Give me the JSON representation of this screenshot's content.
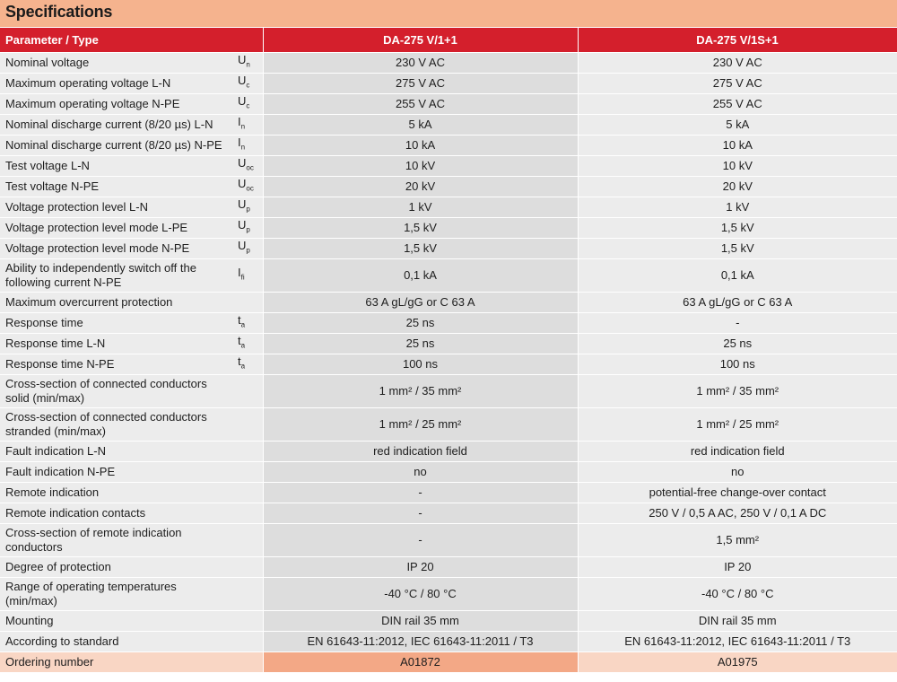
{
  "title": "Specifications",
  "columns": {
    "param": "Parameter / Type",
    "v1": "DA-275 V/1+1",
    "v2": "DA-275 V/1S+1"
  },
  "rows": [
    {
      "name": "Nominal voltage",
      "sym": "U",
      "sub": "n",
      "v1": "230 V AC",
      "v2": "230 V AC"
    },
    {
      "name": "Maximum operating voltage L-N",
      "sym": "U",
      "sub": "c",
      "v1": "275 V AC",
      "v2": "275 V AC"
    },
    {
      "name": "Maximum operating voltage N-PE",
      "sym": "U",
      "sub": "c",
      "v1": "255 V AC",
      "v2": "255 V AC"
    },
    {
      "name": "Nominal discharge current (8/20 µs) L-N",
      "sym": "I",
      "sub": "n",
      "v1": "5 kA",
      "v2": "5 kA"
    },
    {
      "name": "Nominal discharge current (8/20 µs) N-PE",
      "sym": "I",
      "sub": "n",
      "v1": "10 kA",
      "v2": "10 kA"
    },
    {
      "name": "Test voltage L-N",
      "sym": "U",
      "sub": "oc",
      "v1": "10 kV",
      "v2": "10 kV"
    },
    {
      "name": "Test voltage N-PE",
      "sym": "U",
      "sub": "oc",
      "v1": "20 kV",
      "v2": "20 kV"
    },
    {
      "name": "Voltage protection level L-N",
      "sym": "U",
      "sub": "p",
      "v1": "1 kV",
      "v2": "1 kV"
    },
    {
      "name": "Voltage protection level mode L-PE",
      "sym": "U",
      "sub": "p",
      "v1": "1,5 kV",
      "v2": "1,5 kV"
    },
    {
      "name": "Voltage protection level mode N-PE",
      "sym": "U",
      "sub": "p",
      "v1": "1,5 kV",
      "v2": "1,5 kV"
    },
    {
      "name": "Ability to independently switch off the following current N-PE",
      "sym": "I",
      "sub": "fi",
      "v1": "0,1 kA",
      "v2": "0,1 kA"
    },
    {
      "name": "Maximum overcurrent protection",
      "sym": "",
      "sub": "",
      "v1": "63 A gL/gG or C 63 A",
      "v2": "63 A gL/gG or C 63 A"
    },
    {
      "name": "Response time",
      "sym": "t",
      "sub": "a",
      "v1": "25 ns",
      "v2": "-"
    },
    {
      "name": "Response time L-N",
      "sym": "t",
      "sub": "a",
      "v1": "25 ns",
      "v2": "25 ns"
    },
    {
      "name": "Response time N-PE",
      "sym": "t",
      "sub": "a",
      "v1": "100 ns",
      "v2": "100 ns"
    },
    {
      "name": "Cross-section of connected conductors solid (min/max)",
      "sym": "",
      "sub": "",
      "v1": "1 mm² / 35 mm²",
      "v2": "1 mm² / 35 mm²"
    },
    {
      "name": "Cross-section of connected conductors stranded (min/max)",
      "sym": "",
      "sub": "",
      "v1": "1 mm² / 25 mm²",
      "v2": "1 mm² / 25 mm²"
    },
    {
      "name": "Fault indication L-N",
      "sym": "",
      "sub": "",
      "v1": "red indication field",
      "v2": "red indication field"
    },
    {
      "name": "Fault indication N-PE",
      "sym": "",
      "sub": "",
      "v1": "no",
      "v2": "no"
    },
    {
      "name": "Remote indication",
      "sym": "",
      "sub": "",
      "v1": "-",
      "v2": "potential-free change-over contact"
    },
    {
      "name": "Remote indication contacts",
      "sym": "",
      "sub": "",
      "v1": "-",
      "v2": "250 V / 0,5 A AC, 250 V / 0,1 A DC"
    },
    {
      "name": "Cross-section of remote indication conductors",
      "sym": "",
      "sub": "",
      "v1": "-",
      "v2": "1,5 mm²"
    },
    {
      "name": "Degree of protection",
      "sym": "",
      "sub": "",
      "v1": "IP 20",
      "v2": "IP 20"
    },
    {
      "name": "Range of operating temperatures (min/max)",
      "sym": "",
      "sub": "",
      "v1": "-40 °C / 80 °C",
      "v2": "-40 °C / 80 °C"
    },
    {
      "name": "Mounting",
      "sym": "",
      "sub": "",
      "v1": "DIN rail 35 mm",
      "v2": "DIN rail 35 mm"
    },
    {
      "name": "According to standard",
      "sym": "",
      "sub": "",
      "v1": "EN 61643-11:2012, IEC 61643-11:2011 / T3",
      "v2": "EN 61643-11:2012, IEC 61643-11:2011 / T3"
    },
    {
      "name": "Ordering number",
      "sym": "",
      "sub": "",
      "v1": "A01872",
      "v2": "A01975"
    }
  ],
  "colors": {
    "header_red": "#d41f2c",
    "banner": "#f5b38e",
    "order_highlight": "#f3a886"
  }
}
